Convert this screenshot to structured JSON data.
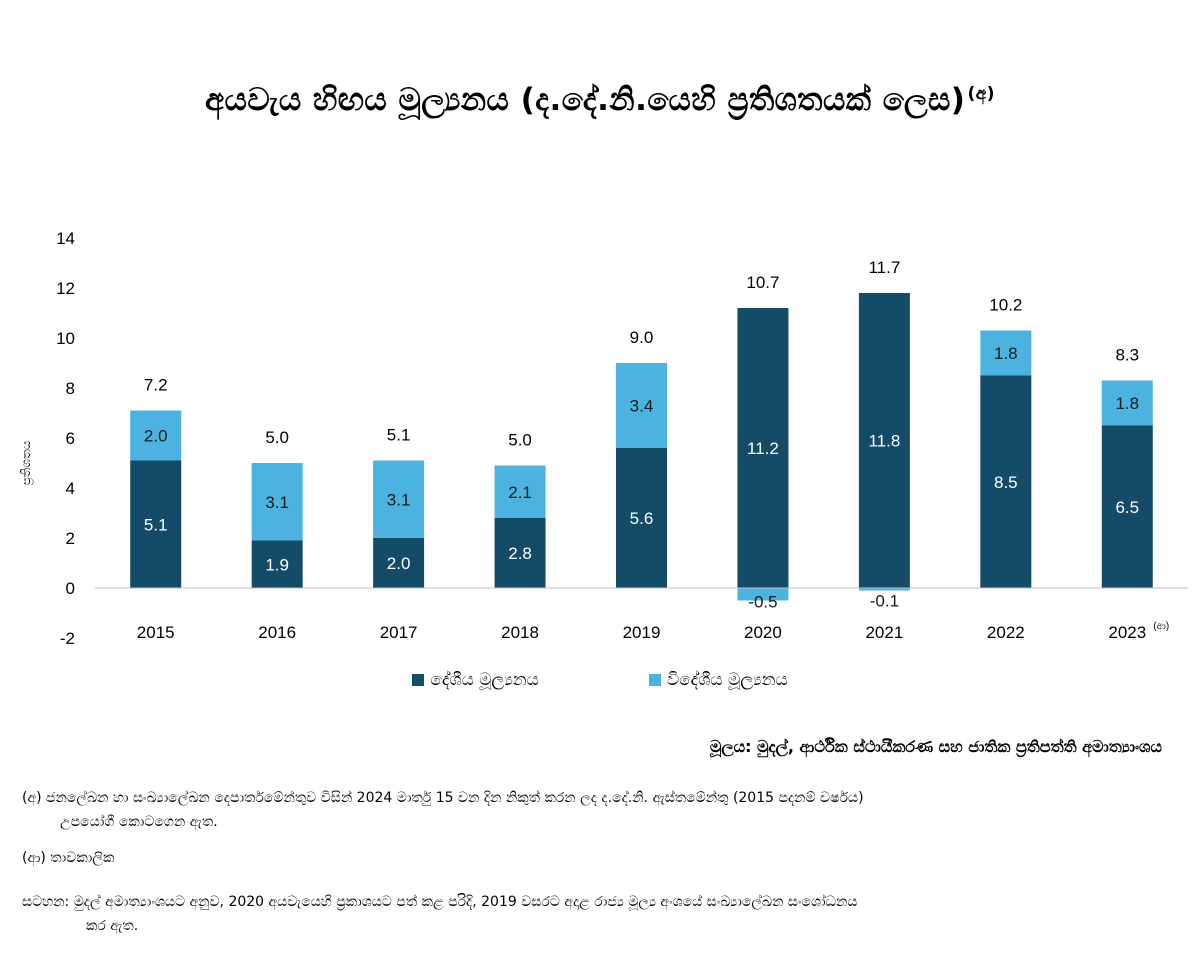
{
  "title": "අයවැය හිඟය මූල්‍යනය (ද.දේ.නි.යෙහි ප්‍රතිශතයක් ලෙස)",
  "title_marker": "(අ)",
  "colors": {
    "domestic": "#144b66",
    "foreign": "#4cb2e0",
    "axis": "#bfbfbf"
  },
  "chart_data": {
    "type": "bar",
    "stacked": true,
    "ylabel": "ප්‍රතිශතය",
    "ylim": [
      -2,
      14
    ],
    "yticks": [
      "-2",
      "0",
      "2",
      "4",
      "6",
      "8",
      "10",
      "12",
      "14"
    ],
    "categories": [
      "2015",
      "2016",
      "2017",
      "2018",
      "2019",
      "2020",
      "2021",
      "2022",
      "2023"
    ],
    "category_markers": [
      "",
      "",
      "",
      "",
      "",
      "",
      "",
      "",
      "(ආ)"
    ],
    "series": [
      {
        "name": "දේශීය මූල්‍යනය",
        "values": [
          5.1,
          1.9,
          2.0,
          2.8,
          5.6,
          11.2,
          11.8,
          8.5,
          6.5
        ],
        "labels": [
          "5.1",
          "1.9",
          "2.0",
          "2.8",
          "5.6",
          "11.2",
          "11.8",
          "8.5",
          "6.5"
        ]
      },
      {
        "name": "විදේශීය මූල්‍යනය",
        "values": [
          2.0,
          3.1,
          3.1,
          2.1,
          3.4,
          -0.5,
          -0.1,
          1.8,
          1.8
        ],
        "labels": [
          "2.0",
          "3.1",
          "3.1",
          "2.1",
          "3.4",
          "-0.5",
          "-0.1",
          "1.8",
          "1.8"
        ]
      }
    ],
    "totals": [
      7.2,
      5.0,
      5.1,
      5.0,
      9.0,
      10.7,
      11.7,
      10.2,
      8.3
    ],
    "total_labels": [
      "7.2",
      "5.0",
      "5.1",
      "5.0",
      "9.0",
      "10.7",
      "11.7",
      "10.2",
      "8.3"
    ],
    "legend_position": "bottom",
    "grid": false
  },
  "source": "මූලය: මුදල්, ආර්ථික ස්ථායීකරණ සහ ජාතික ප්‍රතිපත්ති අමාත්‍යාංශය",
  "notes": {
    "a_marker": "(අ)",
    "a_line1": "ජනලේඛන හා සංඛ්‍යාලේඛන දෙපාර්තමේන්තුව විසින් 2024 මාර්තු 15 වන දින නිකුත් කරන ලද ද.දේ.නි. ඇස්තමේන්තු (2015 පදනම් වර්ෂය)",
    "a_line2": "උපයෝගී කොටගෙන ඇත.",
    "b_marker": "(ආ)",
    "b_text": "තාවකාලික",
    "c_marker": "සටහන:",
    "c_line1": "මුදල් අමාත්‍යාංශයට අනුව, 2020 අයවැයෙහි ප්‍රකාශයට පත් කළ පරිදි, 2019 වසරට අදාළ රාජ්‍ය මූල්‍ය අංශයේ සංඛ්‍යාලේඛන සංශෝධනය",
    "c_line2": "කර ඇත."
  }
}
